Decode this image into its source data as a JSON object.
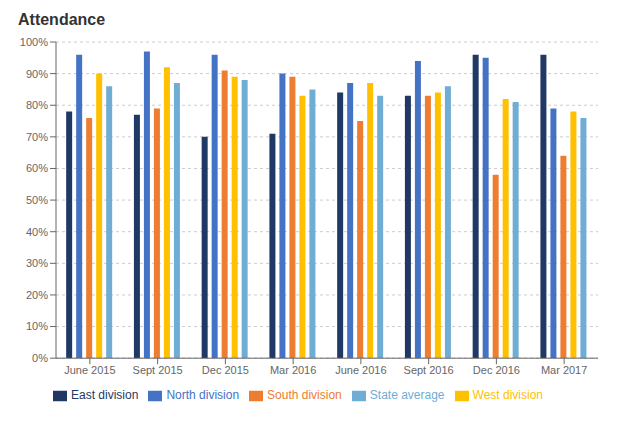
{
  "chart_data": {
    "type": "bar",
    "title": "Attendance",
    "categories": [
      "June 2015",
      "Sept 2015",
      "Dec 2015",
      "Mar 2016",
      "June 2016",
      "Sept 2016",
      "Dec 2016",
      "Mar 2017"
    ],
    "series": [
      {
        "name": "East division",
        "color": "#1F3864",
        "values": [
          78,
          77,
          70,
          71,
          84,
          83,
          96,
          96
        ]
      },
      {
        "name": "North division",
        "color": "#4472C4",
        "values": [
          96,
          97,
          96,
          90,
          87,
          94,
          95,
          79
        ]
      },
      {
        "name": "South division",
        "color": "#ED7D31",
        "values": [
          76,
          79,
          91,
          89,
          75,
          83,
          58,
          64
        ]
      },
      {
        "name": "West division",
        "color": "#FFC000",
        "values": [
          90,
          92,
          89,
          83,
          87,
          84,
          82,
          78
        ]
      },
      {
        "name": "State average",
        "color": "#70ADD4",
        "values": [
          86,
          87,
          88,
          85,
          83,
          86,
          81,
          76
        ]
      }
    ],
    "ylim": [
      0,
      100
    ],
    "yticks": [
      {
        "value": 0,
        "label": "0%"
      },
      {
        "value": 10,
        "label": "10%"
      },
      {
        "value": 20,
        "label": "20%"
      },
      {
        "value": 30,
        "label": "30%"
      },
      {
        "value": 40,
        "label": "40%"
      },
      {
        "value": 50,
        "label": "50%"
      },
      {
        "value": 60,
        "label": "60%"
      },
      {
        "value": 70,
        "label": "70%"
      },
      {
        "value": 80,
        "label": "80%"
      },
      {
        "value": 90,
        "label": "90%"
      },
      {
        "value": 100,
        "label": "100%"
      }
    ],
    "grid": true,
    "legend": "bottom"
  }
}
